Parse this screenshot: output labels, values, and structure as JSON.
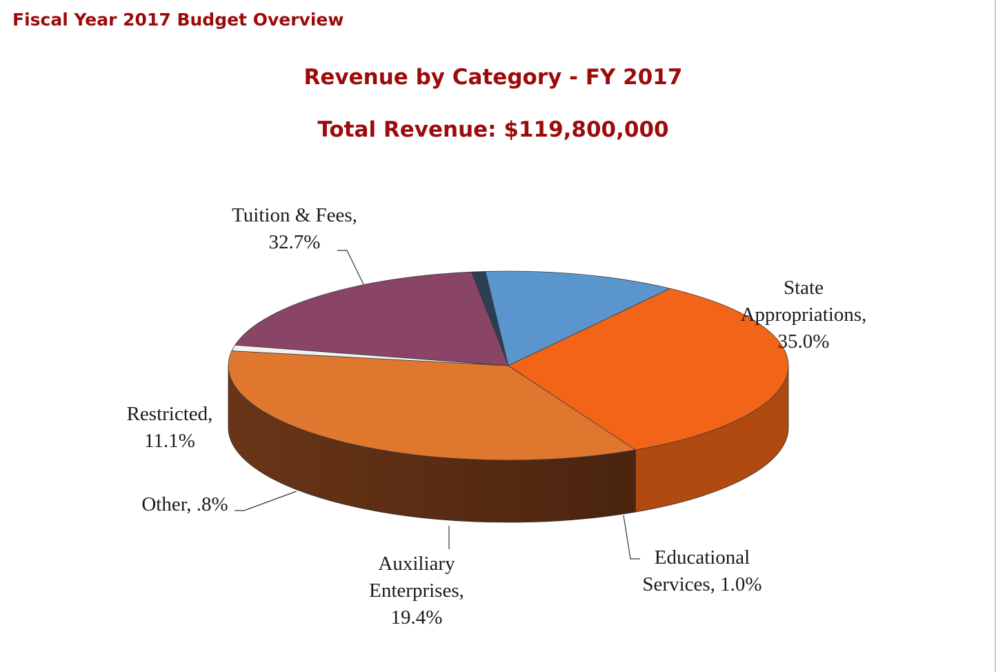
{
  "header": {
    "title": "Fiscal Year 2017 Budget Overview"
  },
  "chart_data": {
    "type": "pie",
    "style": "3d",
    "title": "Revenue by Category - FY 2017",
    "subtitle": "Total Revenue: $119,800,000",
    "slices": [
      {
        "label_lines": [
          "State",
          "Appropriations,",
          "35.0%"
        ],
        "value": 35.0,
        "color": "#e0772f",
        "side": "#5a2e14"
      },
      {
        "label_lines": [
          "Educational",
          "Services, 1.0%"
        ],
        "value": 1.0,
        "color": "#f2f2f2",
        "side": "#8a8a8a"
      },
      {
        "label_lines": [
          "Auxiliary",
          "Enterprises,",
          "19.4%"
        ],
        "value": 19.4,
        "color": "#8a4566",
        "side": "#6b344f"
      },
      {
        "label_lines": [
          "Other, .8%"
        ],
        "value": 0.8,
        "color": "#2d3d52",
        "side": "#3d4f66"
      },
      {
        "label_lines": [
          "Restricted,",
          "11.1%"
        ],
        "value": 11.1,
        "color": "#5a96cd",
        "side": "#4d83b8"
      },
      {
        "label_lines": [
          "Tuition & Fees,",
          "32.7%"
        ],
        "value": 32.7,
        "color": "#f26417",
        "side": "#b04a10"
      }
    ]
  }
}
